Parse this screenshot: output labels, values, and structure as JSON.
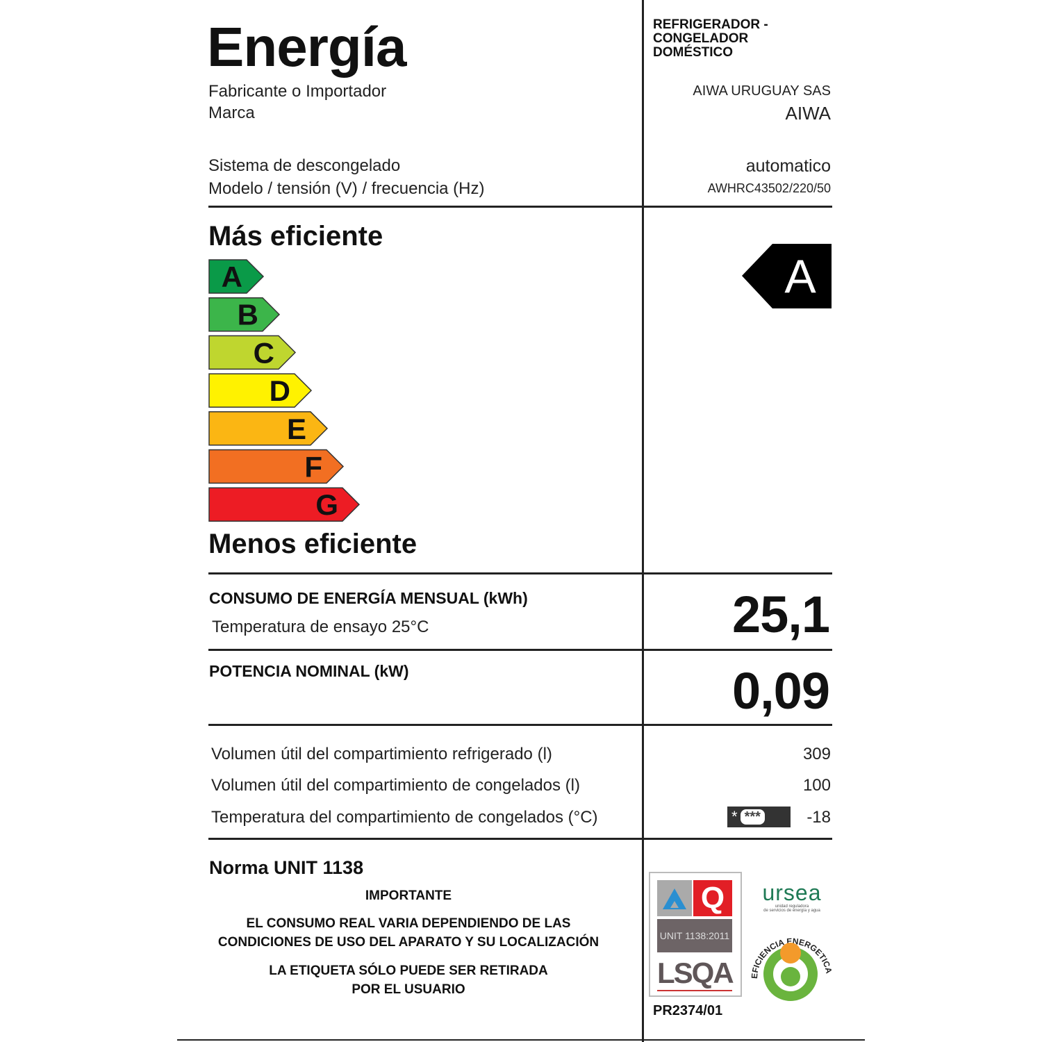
{
  "header": {
    "title": "Energía",
    "appliance_type": [
      "REFRIGERADOR -",
      "CONGELADOR",
      "DOMÉSTICO"
    ]
  },
  "info": {
    "manufacturer_label": "Fabricante o Importador",
    "manufacturer_value": "AIWA URUGUAY SAS",
    "brand_label": "Marca",
    "brand_value": "AIWA",
    "defrost_label": "Sistema de descongelado",
    "defrost_value": "automatico",
    "model_label": "Modelo / tensión (V) / frecuencia (Hz)",
    "model_value": "AWHRC43502/220/50"
  },
  "scale": {
    "top_label": "Más eficiente",
    "bottom_label": "Menos eficiente",
    "classes": [
      {
        "letter": "A",
        "color": "#0a9a48"
      },
      {
        "letter": "B",
        "color": "#3cb54a"
      },
      {
        "letter": "C",
        "color": "#bfd62f"
      },
      {
        "letter": "D",
        "color": "#fff200"
      },
      {
        "letter": "E",
        "color": "#fbb613"
      },
      {
        "letter": "F",
        "color": "#f26f22"
      },
      {
        "letter": "G",
        "color": "#ed1c24"
      }
    ],
    "rating": "A"
  },
  "consumption": {
    "label": "CONSUMO DE ENERGÍA MENSUAL (kWh)",
    "sub": "Temperatura de ensayo 25°C",
    "value": "25,1"
  },
  "power": {
    "label": "POTENCIA NOMINAL (kW)",
    "value": "0,09"
  },
  "volumes": [
    {
      "label": "Volumen útil del compartimiento refrigerado (l)",
      "value": "309"
    },
    {
      "label": "Volumen útil del compartimiento de congelados (l)",
      "value": "100"
    },
    {
      "label": "Temperatura del compartimiento de congelados (°C)",
      "value": "-18",
      "icon": "freezer-stars-icon",
      "stars": "***"
    }
  ],
  "footer": {
    "norm": "Norma UNIT 1138",
    "important": "IMPORTANTE",
    "note1": [
      "EL CONSUMO REAL VARIA DEPENDIENDO DE LAS",
      "CONDICIONES DE USO DEL APARATO Y SU LOCALIZACIÓN"
    ],
    "note2": [
      "LA ETIQUETA SÓLO PUEDE SER RETIRADA",
      "POR EL USUARIO"
    ],
    "cert": {
      "standard": "UNIT 1138:2011",
      "org": "LSQA",
      "code": "PR2374/01"
    },
    "ursea": {
      "name": "ursea",
      "sub1": "unidad reguladora",
      "sub2": "de servicios de energía y agua"
    },
    "eficiencia": "EFICIENCIA ENERGETICA"
  }
}
